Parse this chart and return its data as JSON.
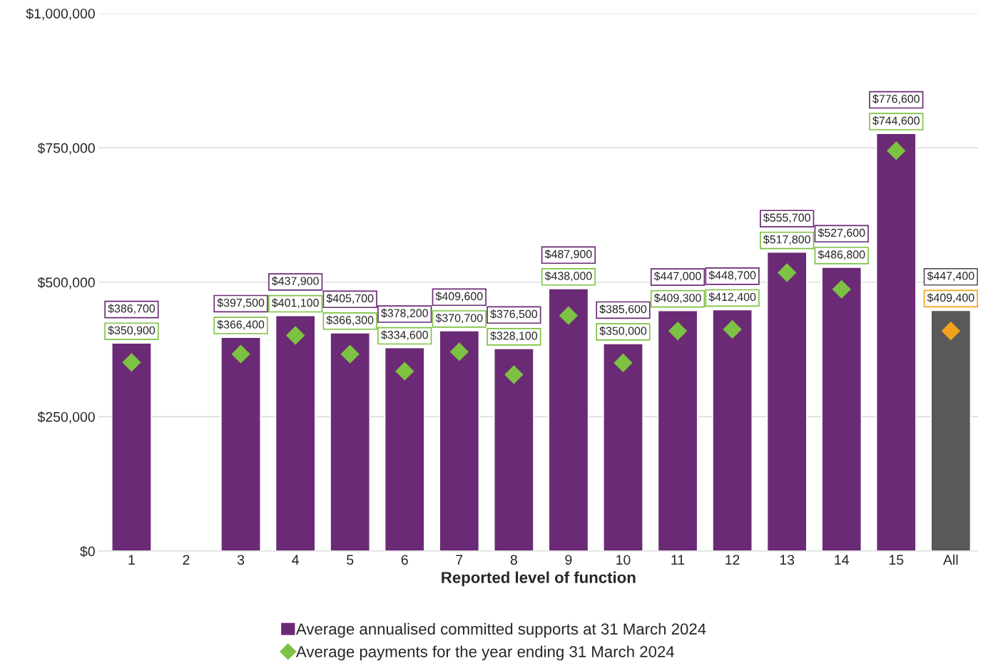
{
  "chart_data": {
    "type": "bar",
    "xlabel": "Reported level of function",
    "categories": [
      "1",
      "2",
      "3",
      "4",
      "5",
      "6",
      "7",
      "8",
      "9",
      "10",
      "11",
      "12",
      "13",
      "14",
      "15",
      "All"
    ],
    "series": [
      {
        "name": "Average annualised committed supports at 31 March 2024",
        "type": "bar",
        "colors": [
          "#6b2a75",
          "#6b2a75",
          "#6b2a75",
          "#6b2a75",
          "#6b2a75",
          "#6b2a75",
          "#6b2a75",
          "#6b2a75",
          "#6b2a75",
          "#6b2a75",
          "#6b2a75",
          "#6b2a75",
          "#6b2a75",
          "#6b2a75",
          "#6b2a75",
          "#595959"
        ],
        "values": [
          386700,
          null,
          397500,
          437900,
          405700,
          378200,
          409600,
          376500,
          487900,
          385600,
          447000,
          448700,
          555700,
          527600,
          776600,
          447400
        ],
        "value_labels": [
          "$386,700",
          null,
          "$397,500",
          "$437,900",
          "$405,700",
          "$378,200",
          "$409,600",
          "$376,500",
          "$487,900",
          "$385,600",
          "$447,000",
          "$448,700",
          "$555,700",
          "$527,600",
          "$776,600",
          "$447,400"
        ]
      },
      {
        "name": "Average payments for the year ending 31 March 2024",
        "type": "scatter",
        "marker": "diamond",
        "colors": [
          "#7dc242",
          "#7dc242",
          "#7dc242",
          "#7dc242",
          "#7dc242",
          "#7dc242",
          "#7dc242",
          "#7dc242",
          "#7dc242",
          "#7dc242",
          "#7dc242",
          "#7dc242",
          "#7dc242",
          "#7dc242",
          "#7dc242",
          "#f4a21b"
        ],
        "values": [
          350900,
          null,
          366400,
          401100,
          366300,
          334600,
          370700,
          328100,
          438000,
          350000,
          409300,
          412400,
          517800,
          486800,
          744600,
          409400
        ],
        "value_labels": [
          "$350,900",
          null,
          "$366,400",
          "$401,100",
          "$366,300",
          "$334,600",
          "$370,700",
          "$328,100",
          "$438,000",
          "$350,000",
          "$409,300",
          "$412,400",
          "$517,800",
          "$486,800",
          "$744,600",
          "$409,400"
        ]
      }
    ],
    "ylim": [
      0,
      1000000
    ],
    "yticks": [
      {
        "value": 0,
        "label": "$0"
      },
      {
        "value": 250000,
        "label": "$250,000"
      },
      {
        "value": 500000,
        "label": "$500,000"
      },
      {
        "value": 750000,
        "label": "$750,000"
      },
      {
        "value": 1000000,
        "label": "$1,000,000"
      }
    ],
    "grid": "y",
    "legend": "bottom"
  }
}
